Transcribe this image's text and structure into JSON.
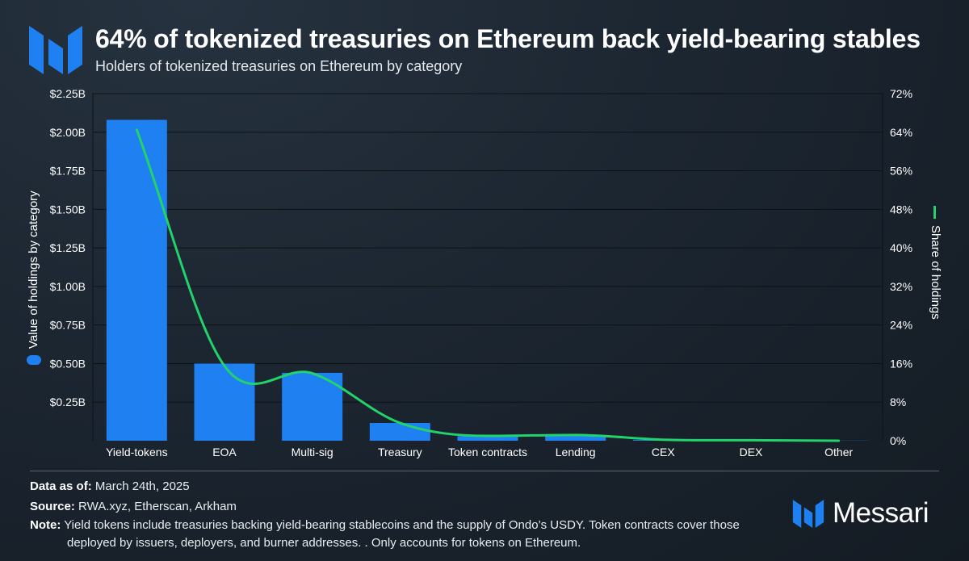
{
  "header": {
    "title": "64% of tokenized treasuries on Ethereum back yield-bearing stables",
    "subtitle": "Holders of tokenized treasuries on Ethereum by category"
  },
  "colors": {
    "bar": "#1f80f2",
    "line": "#22d26a",
    "grid": "#000000",
    "text": "#ffffff"
  },
  "chart_data": {
    "type": "bar",
    "categories": [
      "Yield-tokens",
      "EOA",
      "Multi-sig",
      "Treasury",
      "Token contracts",
      "Lending",
      "CEX",
      "DEX",
      "Other"
    ],
    "series": [
      {
        "name": "Value of holdings by category",
        "type": "bar",
        "axis": "left",
        "unit": "$B",
        "values": [
          2.08,
          0.5,
          0.44,
          0.115,
          0.03,
          0.035,
          0.005,
          0.002,
          0.001
        ]
      },
      {
        "name": "Share of holdings",
        "type": "line",
        "axis": "right",
        "unit": "%",
        "values": [
          64.5,
          15.5,
          14.0,
          3.7,
          1.0,
          1.2,
          0.2,
          0.1,
          0.0
        ]
      }
    ],
    "y_left": {
      "label": "Value of holdings by category",
      "range": [
        0,
        2.25
      ],
      "ticks": [
        0.25,
        0.5,
        0.75,
        1.0,
        1.25,
        1.5,
        1.75,
        2.0,
        2.25
      ],
      "tick_labels": [
        "$0.25B",
        "$0.50B",
        "$0.75B",
        "$1.00B",
        "$1.25B",
        "$1.50B",
        "$1.75B",
        "$2.00B",
        "$2.25B"
      ]
    },
    "y_right": {
      "label": "Share of holdings",
      "range": [
        0,
        72
      ],
      "ticks": [
        0,
        8,
        16,
        24,
        32,
        40,
        48,
        56,
        64,
        72
      ],
      "tick_labels": [
        "0%",
        "8%",
        "16%",
        "24%",
        "32%",
        "40%",
        "48%",
        "56%",
        "64%",
        "72%"
      ]
    }
  },
  "footer": {
    "data_label": "Data as of:",
    "data_value": "March 24th, 2025",
    "source_label": "Source:",
    "source_value": "RWA.xyz, Etherscan, Arkham",
    "note_label": "Note:",
    "note_line1": "Yield tokens include treasuries backing yield-bearing stablecoins and the supply of Ondo’s USDY. Token contracts cover those",
    "note_line2": "deployed by issuers, deployers, and burner addresses. . Only accounts for tokens on Ethereum.",
    "brand": "Messari"
  }
}
